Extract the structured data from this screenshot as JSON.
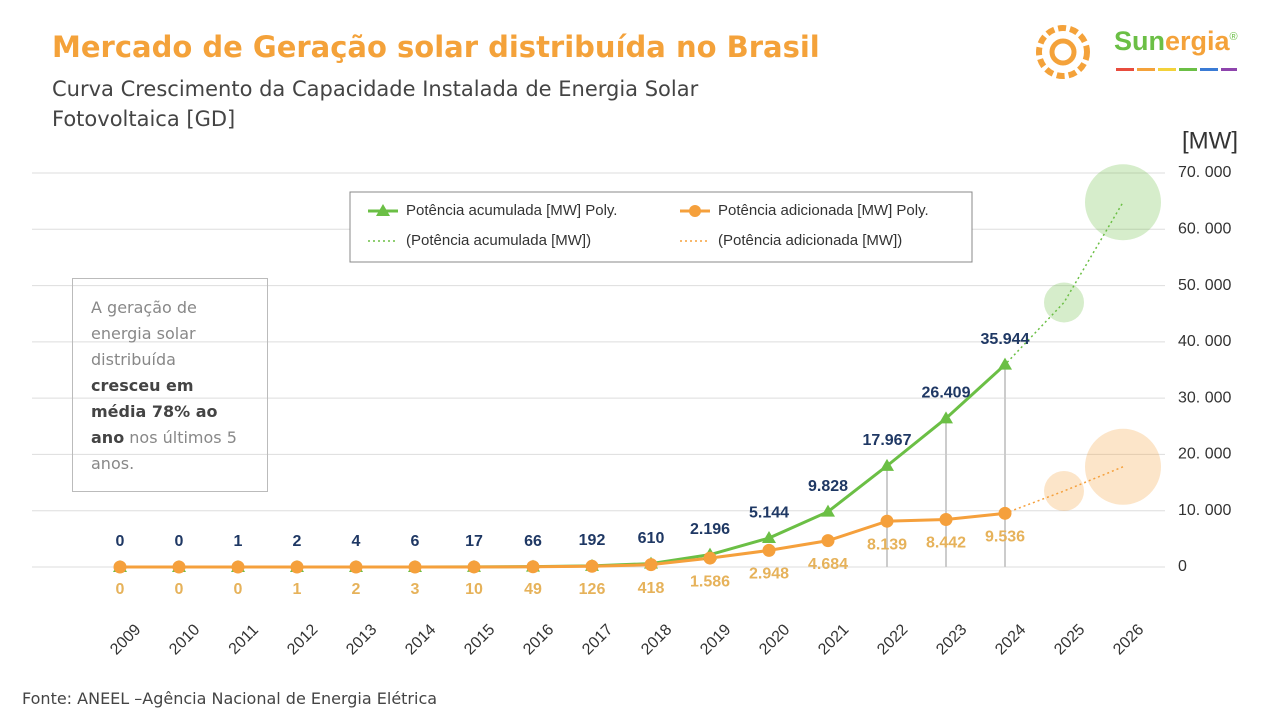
{
  "chart_data": {
    "type": "line",
    "title": "Mercado de Geração solar distribuída no Brasil",
    "subtitle": "Curva Crescimento da Capacidade Instalada de Energia Solar Fotovoltaica [GD]",
    "y_axis_label": "[MW]",
    "categories": [
      "2009",
      "2010",
      "2011",
      "2012",
      "2013",
      "2014",
      "2015",
      "2016",
      "2017",
      "2018",
      "2019",
      "2020",
      "2021",
      "2022",
      "2023",
      "2024",
      "2025",
      "2026"
    ],
    "series": [
      {
        "name": "Potência acumulada [MW] Poly.",
        "trend_name": "(Potência acumulada [MW])",
        "color": "#6bbf45",
        "label_color": "#1f3864",
        "marker": "triangle",
        "label_position": "above",
        "values": [
          0,
          0,
          1,
          2,
          4,
          6,
          17,
          66,
          192,
          610,
          2196,
          5144,
          9828,
          17967,
          26409,
          35944,
          null,
          null
        ],
        "value_labels": [
          "0",
          "0",
          "1",
          "2",
          "4",
          "6",
          "17",
          "66",
          "192",
          "610",
          "2.196",
          "5.144",
          "9.828",
          "17.967",
          "26.409",
          "35.944",
          null,
          null
        ],
        "projected_values": [
          null,
          null,
          null,
          null,
          null,
          null,
          null,
          null,
          null,
          null,
          null,
          null,
          null,
          null,
          null,
          null,
          47000,
          64800
        ]
      },
      {
        "name": "Potência adicionada [MW] Poly.",
        "trend_name": "(Potência adicionada [MW])",
        "color": "#f5a03c",
        "label_color": "#e6b25a",
        "marker": "circle",
        "label_position": "below",
        "values": [
          0,
          0,
          0,
          1,
          2,
          3,
          10,
          49,
          126,
          418,
          1586,
          2948,
          4684,
          8139,
          8442,
          9536,
          null,
          null
        ],
        "value_labels": [
          "0",
          "0",
          "0",
          "1",
          "2",
          "3",
          "10",
          "49",
          "126",
          "418",
          "1.586",
          "2.948",
          "4.684",
          "8.139",
          "8.442",
          "9.536",
          null,
          null
        ],
        "projected_values": [
          null,
          null,
          null,
          null,
          null,
          null,
          null,
          null,
          null,
          null,
          null,
          null,
          null,
          null,
          null,
          null,
          13500,
          17800
        ]
      }
    ],
    "ylim": [
      0,
      70000
    ],
    "yticks": [
      0,
      {
        "value": 10000,
        "label": "10. 000"
      },
      {
        "value": 20000,
        "label": "20. 000"
      },
      {
        "value": 30000,
        "label": "30. 000"
      },
      {
        "value": 40000,
        "label": "40. 000"
      },
      {
        "value": 50000,
        "label": "50. 000"
      },
      {
        "value": 60000,
        "label": "60. 000"
      },
      {
        "value": 70000,
        "label": "70. 000"
      }
    ],
    "grid": true,
    "annotation": [
      "A geração de energia solar distribuída ",
      "cresceu em média 78% ao ano",
      " nos últimos 5 anos."
    ],
    "source": "Fonte: ANEEL –Agência Nacional de Energia Elétrica"
  },
  "logo": {
    "parts": [
      "Sun",
      "ergia",
      "®"
    ]
  }
}
